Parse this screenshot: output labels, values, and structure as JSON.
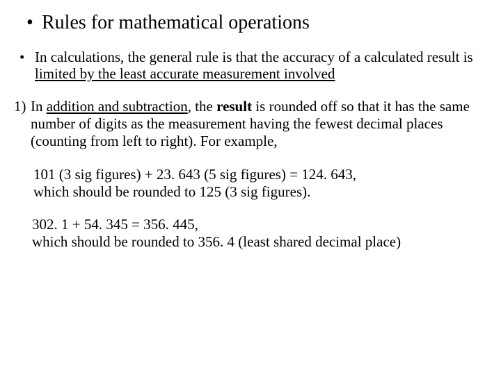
{
  "colors": {
    "background": "#ffffff",
    "text": "#000000"
  },
  "typography": {
    "fontFamily": "Times New Roman",
    "title_fontsize_pt": 21,
    "body_fontsize_pt": 16
  },
  "title": {
    "bullet": "•",
    "text": "Rules for mathematical operations"
  },
  "para1": {
    "bullet": "•",
    "t1": "In calculations, the general rule is that the accuracy of a calculated result is ",
    "u1": "limited by the least accurate measurement involved"
  },
  "para2": {
    "num": "1)",
    "t1": "In ",
    "u1": "addition and subtraction",
    "t2": ", the ",
    "b1": "result",
    "t3": " is rounded off so that it has the same number of digits as the measurement having the fewest decimal places (counting from left to right). For example,"
  },
  "ex1": {
    "line1": "101 (3 sig figures) + 23. 643 (5 sig figures) = 124. 643,",
    "line2": "which should be rounded to 125 (3 sig figures)."
  },
  "ex2": {
    "line1": "302. 1 + 54. 345 = 356. 445,",
    "line2": "which should be rounded to 356. 4 (least shared decimal place)"
  }
}
